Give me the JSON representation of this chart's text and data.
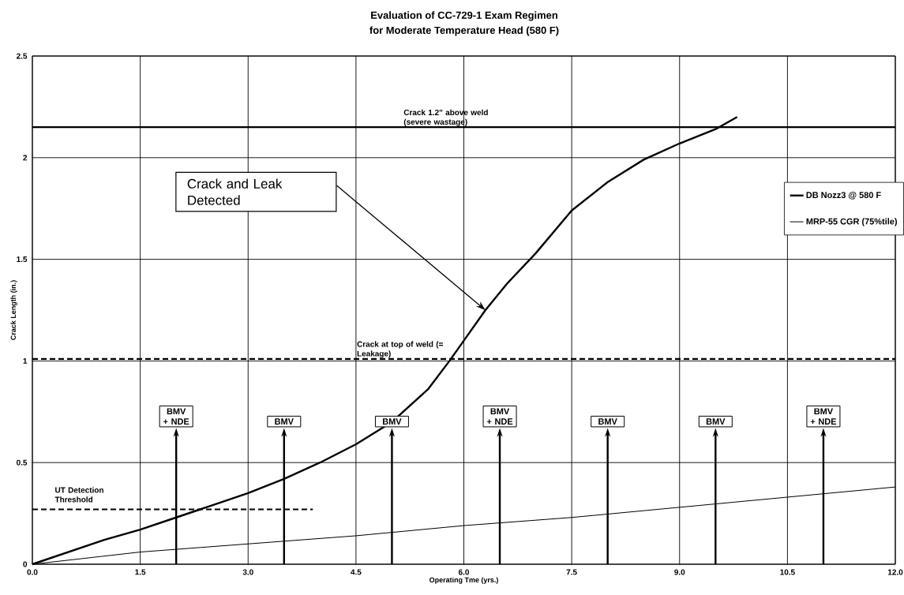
{
  "chart_data": {
    "type": "line",
    "title": "Evaluation of CC-729-1 Exam Regimen",
    "subtitle": "for Moderate Temperature Head (580 F)",
    "xlabel": "Operating Tme (yrs.)",
    "ylabel": "Crack Length (in.)",
    "xlim": [
      0,
      12
    ],
    "ylim": [
      0,
      2.5
    ],
    "xticks": [
      {
        "value": 0,
        "label": "0.0"
      },
      {
        "value": 1.5,
        "label": "1.5"
      },
      {
        "value": 3,
        "label": "3.0"
      },
      {
        "value": 4.5,
        "label": "4.5"
      },
      {
        "value": 6,
        "label": "6.0"
      },
      {
        "value": 7.5,
        "label": "7.5"
      },
      {
        "value": 9,
        "label": "9.0"
      },
      {
        "value": 10.5,
        "label": "10.5"
      },
      {
        "value": 12,
        "label": "12.0"
      }
    ],
    "yticks": [
      0,
      0.5,
      1,
      1.5,
      2,
      2.5
    ],
    "grid": true,
    "legend": "right",
    "series": [
      {
        "name": "DB Nozz3 @ 580 F",
        "color": "#000000",
        "x": [
          0,
          0.5,
          1,
          1.5,
          2,
          2.5,
          3,
          3.5,
          4,
          4.5,
          5,
          5.5,
          5.8,
          6,
          6.3,
          6.6,
          7,
          7.5,
          8,
          8.5,
          9,
          9.5,
          9.8
        ],
        "values": [
          0,
          0.06,
          0.12,
          0.17,
          0.23,
          0.29,
          0.35,
          0.42,
          0.5,
          0.59,
          0.7,
          0.86,
          1.0,
          1.1,
          1.25,
          1.38,
          1.53,
          1.74,
          1.88,
          1.99,
          2.07,
          2.14,
          2.2
        ]
      },
      {
        "name": "MRP-55 CGR  (75%tile)",
        "color": "#000000",
        "x": [
          0,
          1.5,
          3,
          4.5,
          6,
          7.5,
          9,
          10.5,
          12
        ],
        "values": [
          0,
          0.06,
          0.1,
          0.14,
          0.19,
          0.23,
          0.28,
          0.33,
          0.38
        ]
      },
      {
        "color": "#000000",
        "line_style": "dashed",
        "x": [
          0,
          3.9
        ],
        "values": [
          0.27,
          0.27
        ]
      }
    ],
    "ref_lines": [
      {
        "axis": "y",
        "value": 2.15,
        "label": "Crack 1.2\" above weld (severe wastage)",
        "line_style": "solid"
      },
      {
        "axis": "y",
        "value": 1.01,
        "label": "Crack at top of weld (= Leakage)",
        "line_style": "dashed"
      }
    ],
    "annotations": [
      {
        "text": "UT Detection Threshold",
        "x": 0.3,
        "y": 0.27
      },
      "Crack and Leak Detected",
      "BMV + NDE",
      "BMV",
      "BMV",
      "BMV + NDE",
      "BMV",
      "BMV",
      "BMV + NDE"
    ]
  }
}
